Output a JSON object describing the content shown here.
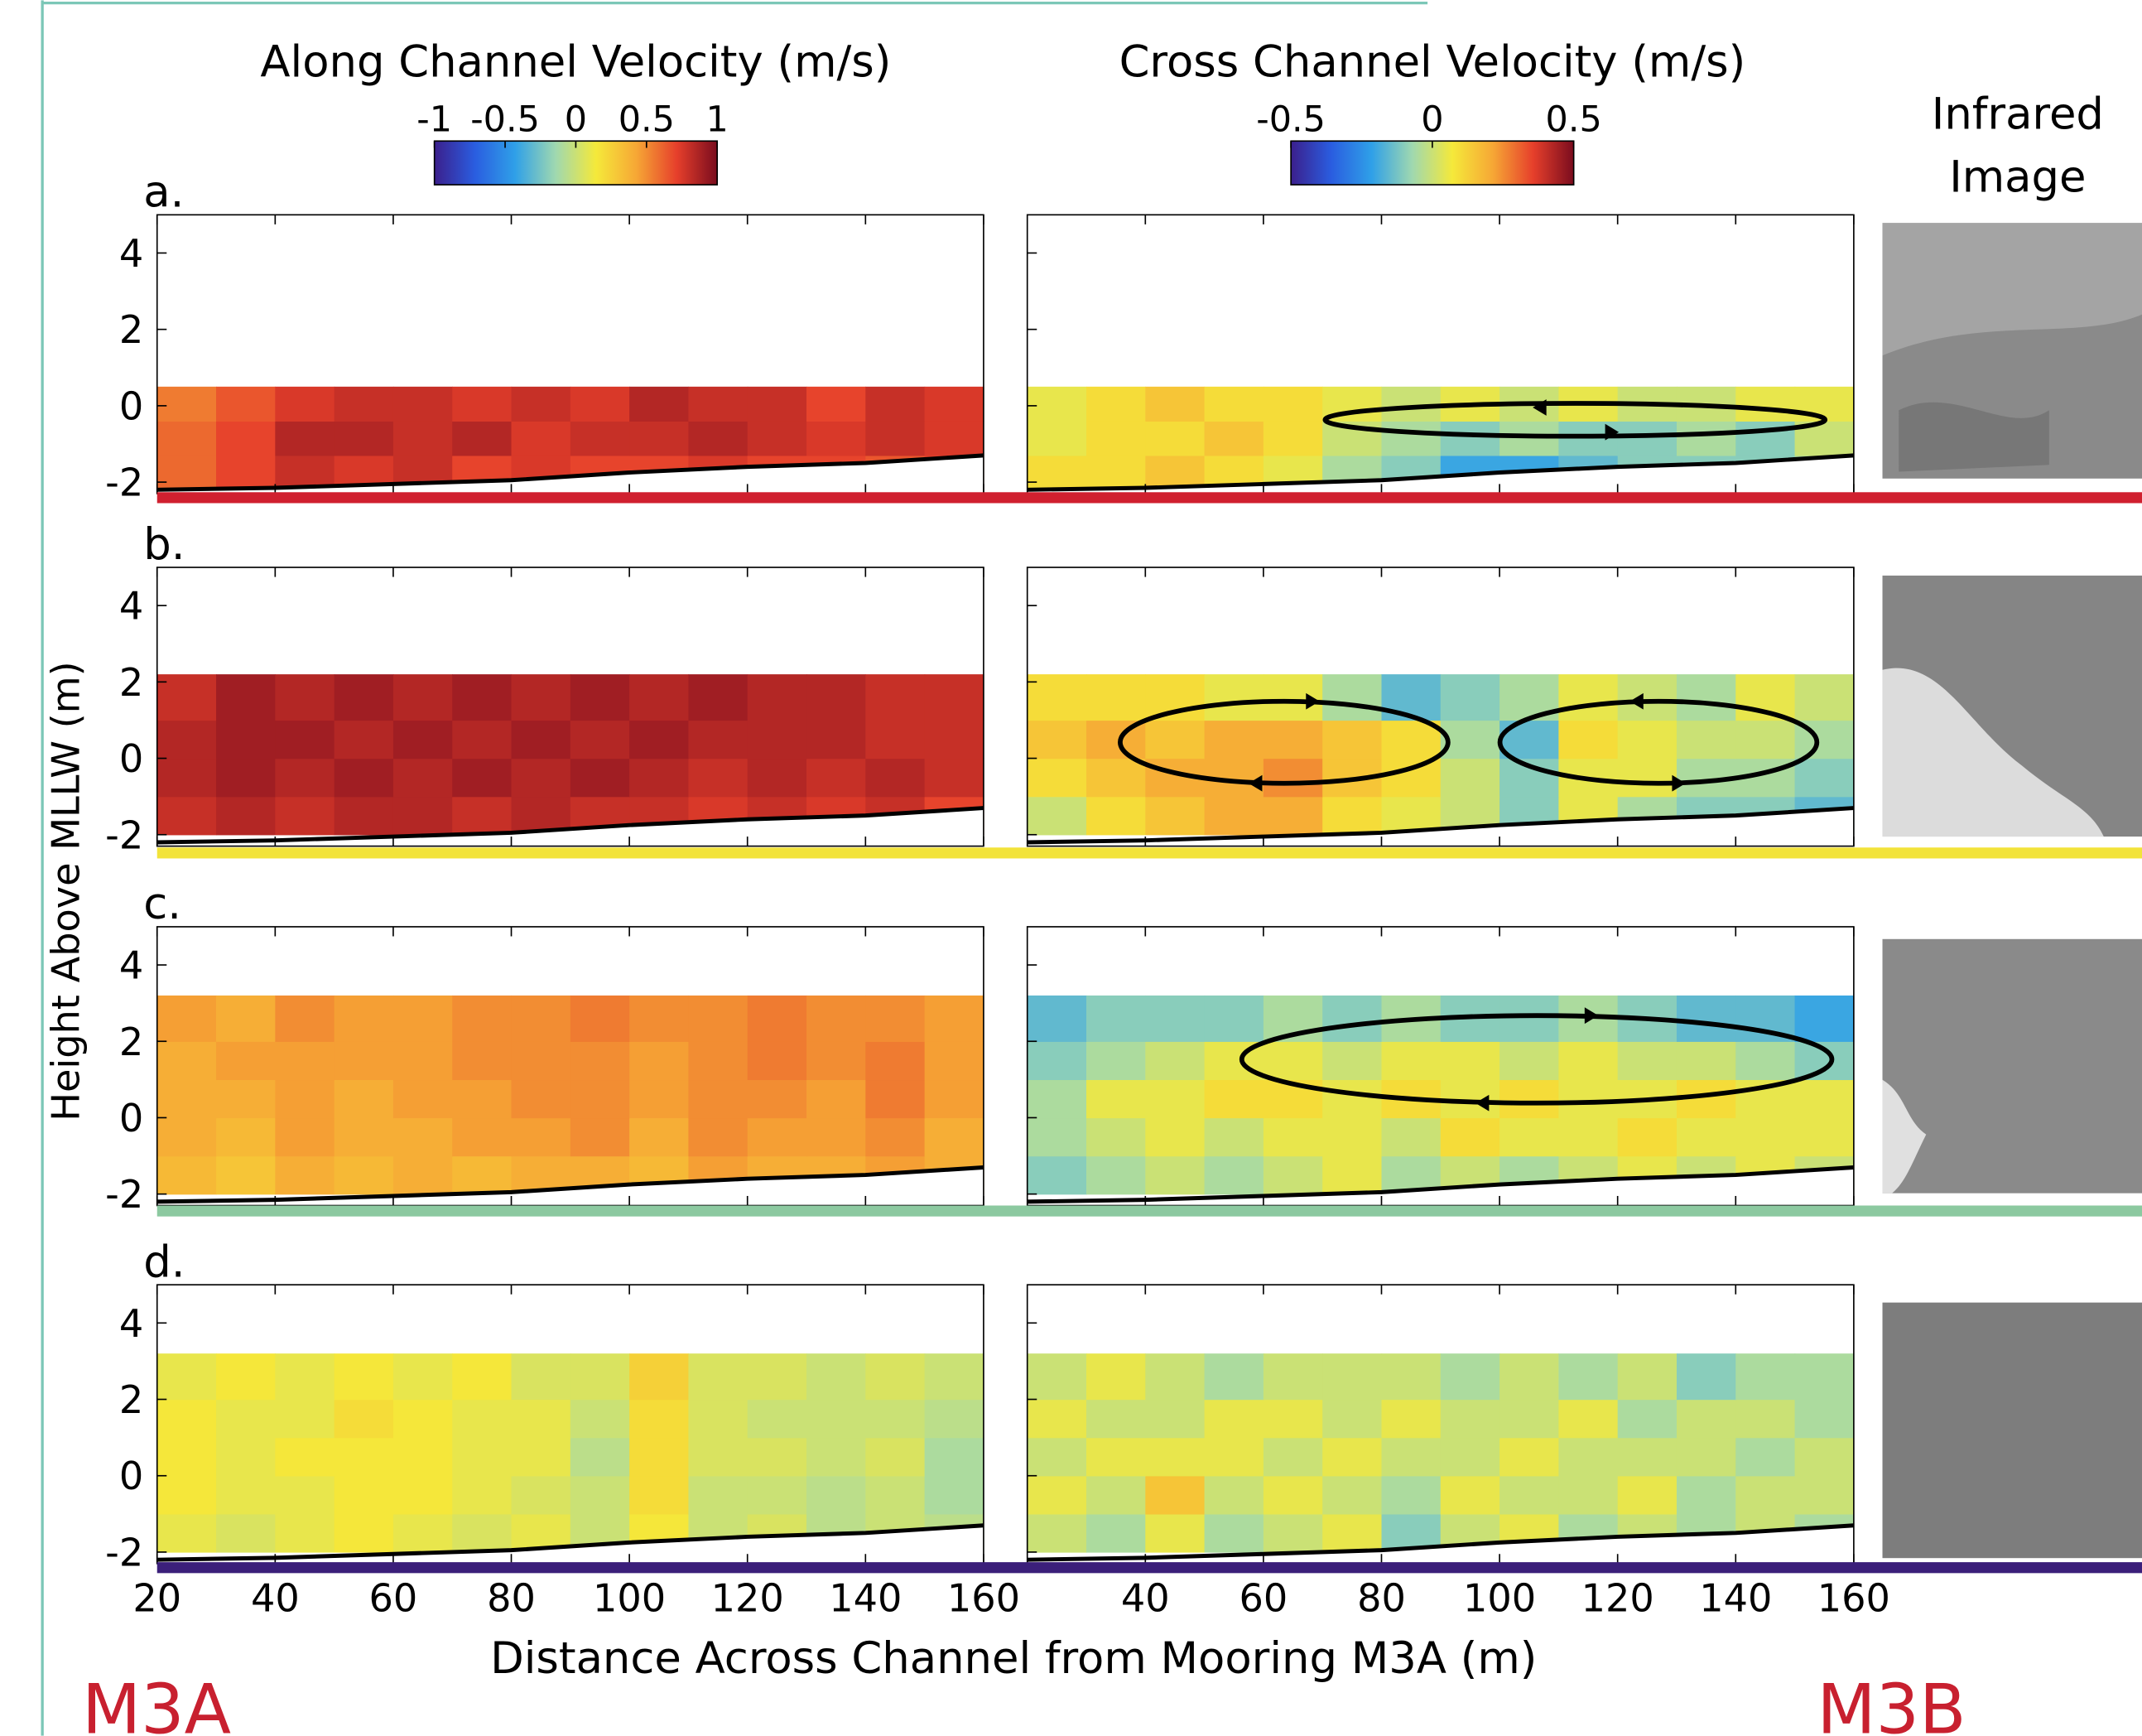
{
  "figure": {
    "ylabel": "Height Above MLLW (m)",
    "xlabel": "Distance Across Channel from Mooring M3A (m)",
    "image_title": [
      "Infrared",
      "Image"
    ],
    "panel_labels": [
      "a.",
      "b.",
      "c.",
      "d."
    ],
    "left_site": "M3A",
    "right_site": "M3B",
    "bottom": {
      "x": [
        20,
        40,
        60,
        80,
        100,
        120,
        140,
        160
      ],
      "y": [
        -2.2,
        -2.15,
        -2.05,
        -1.95,
        -1.75,
        -1.6,
        -1.5,
        -1.3
      ]
    }
  },
  "chart_data": [
    {
      "type": "heatmap",
      "title": "Along Channel Velocity (m/s)",
      "clim": [
        -1,
        1
      ],
      "cticks": [
        -1,
        -0.5,
        0,
        0.5,
        1
      ],
      "colormap": [
        "#3b1f8c",
        "#2a5de0",
        "#2fa0e8",
        "#9fd8b0",
        "#f5e93a",
        "#f6a735",
        "#e63f2b",
        "#7a0c1e"
      ],
      "xlim": [
        20,
        160
      ],
      "xticks": [
        20,
        40,
        60,
        80,
        100,
        120,
        140,
        160
      ],
      "ylim": [
        -2.3,
        5
      ],
      "yticks": [
        -2,
        0,
        2,
        4
      ],
      "x_edges": [
        20,
        30,
        40,
        50,
        60,
        70,
        80,
        90,
        100,
        110,
        120,
        130,
        140,
        150,
        160
      ],
      "panels": [
        {
          "y_edges": [
            -2.2,
            -1.3,
            -0.4,
            0.5
          ],
          "z": [
            [
              0.6,
              0.7,
              0.8,
              0.75,
              0.8,
              0.7,
              0.75,
              0.7,
              0.7,
              0.75,
              0.7,
              0.7,
              0.65,
              0.7
            ],
            [
              0.6,
              0.7,
              0.85,
              0.85,
              0.8,
              0.85,
              0.75,
              0.8,
              0.8,
              0.85,
              0.8,
              0.75,
              0.8,
              0.75
            ],
            [
              0.55,
              0.65,
              0.75,
              0.8,
              0.8,
              0.75,
              0.8,
              0.75,
              0.85,
              0.8,
              0.8,
              0.7,
              0.8,
              0.75
            ]
          ]
        },
        {
          "y_edges": [
            -2,
            -1,
            0,
            1,
            2.2
          ],
          "z": [
            [
              0.8,
              0.85,
              0.8,
              0.85,
              0.85,
              0.8,
              0.85,
              0.8,
              0.8,
              0.75,
              0.8,
              0.75,
              0.8,
              0.7
            ],
            [
              0.85,
              0.9,
              0.85,
              0.9,
              0.85,
              0.9,
              0.85,
              0.9,
              0.85,
              0.8,
              0.85,
              0.8,
              0.85,
              0.8
            ],
            [
              0.85,
              0.9,
              0.9,
              0.85,
              0.9,
              0.85,
              0.9,
              0.85,
              0.9,
              0.85,
              0.85,
              0.85,
              0.8,
              0.8
            ],
            [
              0.8,
              0.9,
              0.85,
              0.9,
              0.85,
              0.9,
              0.85,
              0.9,
              0.85,
              0.9,
              0.85,
              0.85,
              0.8,
              0.8
            ]
          ]
        },
        {
          "y_edges": [
            -2,
            -1,
            0,
            1,
            2,
            3.2
          ],
          "z": [
            [
              0.35,
              0.3,
              0.4,
              0.35,
              0.4,
              0.35,
              0.4,
              0.4,
              0.35,
              0.45,
              0.4,
              0.4,
              0.45,
              0.4
            ],
            [
              0.4,
              0.35,
              0.45,
              0.4,
              0.4,
              0.45,
              0.45,
              0.5,
              0.4,
              0.5,
              0.45,
              0.45,
              0.5,
              0.4
            ],
            [
              0.4,
              0.4,
              0.45,
              0.4,
              0.45,
              0.45,
              0.5,
              0.5,
              0.45,
              0.5,
              0.5,
              0.45,
              0.55,
              0.45
            ],
            [
              0.4,
              0.45,
              0.45,
              0.45,
              0.45,
              0.5,
              0.5,
              0.5,
              0.45,
              0.5,
              0.55,
              0.5,
              0.55,
              0.45
            ],
            [
              0.45,
              0.4,
              0.5,
              0.45,
              0.45,
              0.5,
              0.5,
              0.55,
              0.5,
              0.5,
              0.55,
              0.5,
              0.5,
              0.45
            ]
          ]
        },
        {
          "y_edges": [
            -2,
            -1,
            0,
            1,
            2,
            3.2
          ],
          "z": [
            [
              0.1,
              0.05,
              0.1,
              0.15,
              0.1,
              0.05,
              0.1,
              0.0,
              0.15,
              0.0,
              0.05,
              -0.05,
              0.0,
              -0.05
            ],
            [
              0.15,
              0.1,
              0.1,
              0.15,
              0.15,
              0.1,
              0.05,
              0.0,
              0.2,
              0.0,
              0.0,
              -0.05,
              0.0,
              -0.1
            ],
            [
              0.15,
              0.1,
              0.15,
              0.15,
              0.15,
              0.1,
              0.1,
              -0.05,
              0.2,
              0.05,
              0.05,
              0.0,
              0.05,
              -0.1
            ],
            [
              0.15,
              0.1,
              0.1,
              0.2,
              0.15,
              0.1,
              0.1,
              0.0,
              0.2,
              0.05,
              0.0,
              0.0,
              0.0,
              -0.05
            ],
            [
              0.1,
              0.15,
              0.1,
              0.15,
              0.1,
              0.15,
              0.05,
              0.05,
              0.25,
              0.05,
              0.05,
              0.0,
              0.05,
              0.0
            ]
          ]
        }
      ]
    },
    {
      "type": "heatmap",
      "title": "Cross Channel Velocity (m/s)",
      "clim": [
        -0.5,
        0.5
      ],
      "cticks": [
        -0.5,
        0,
        0.5
      ],
      "colormap": [
        "#3b1f8c",
        "#2a5de0",
        "#2fa0e8",
        "#9fd8b0",
        "#f5e93a",
        "#f6a735",
        "#e63f2b",
        "#7a0c1e"
      ],
      "xlim": [
        20,
        160
      ],
      "xticks": [
        40,
        60,
        80,
        100,
        120,
        140,
        160
      ],
      "ylim": [
        -2.3,
        5
      ],
      "yticks": [
        -2,
        0,
        2,
        4
      ],
      "x_edges": [
        20,
        30,
        40,
        50,
        60,
        70,
        80,
        90,
        100,
        110,
        120,
        130,
        140,
        150,
        160
      ],
      "panels": [
        {
          "y_edges": [
            -2.2,
            -1.3,
            -0.4,
            0.5
          ],
          "z": [
            [
              0.1,
              0.1,
              0.15,
              0.1,
              0.05,
              -0.05,
              -0.1,
              -0.2,
              -0.2,
              -0.15,
              -0.1,
              -0.1,
              -0.1,
              -0.05
            ],
            [
              0.05,
              0.1,
              0.1,
              0.15,
              0.1,
              0.0,
              -0.05,
              -0.1,
              -0.05,
              -0.1,
              -0.1,
              -0.05,
              -0.1,
              0.0
            ],
            [
              0.05,
              0.1,
              0.15,
              0.1,
              0.1,
              0.05,
              0.0,
              0.05,
              0.0,
              0.05,
              0.0,
              0.0,
              0.05,
              0.05
            ]
          ]
        },
        {
          "y_edges": [
            -2,
            -1,
            0,
            1,
            2.2
          ],
          "z": [
            [
              0.0,
              0.1,
              0.15,
              0.2,
              0.2,
              0.1,
              0.05,
              0.0,
              -0.1,
              0.05,
              -0.05,
              -0.1,
              -0.1,
              -0.15
            ],
            [
              0.1,
              0.15,
              0.2,
              0.2,
              0.25,
              0.15,
              0.1,
              0.0,
              -0.1,
              0.05,
              0.05,
              -0.05,
              -0.05,
              -0.1
            ],
            [
              0.15,
              0.2,
              0.15,
              0.2,
              0.2,
              0.15,
              0.1,
              -0.05,
              -0.15,
              0.1,
              0.05,
              0.0,
              0.0,
              -0.05
            ],
            [
              0.1,
              0.1,
              0.1,
              0.05,
              0.05,
              -0.05,
              -0.15,
              -0.1,
              -0.05,
              0.05,
              0.0,
              -0.05,
              0.05,
              0.0
            ]
          ]
        },
        {
          "y_edges": [
            -2,
            -1,
            0,
            1,
            2,
            3.2
          ],
          "z": [
            [
              -0.1,
              -0.05,
              0.0,
              -0.05,
              0.0,
              0.05,
              -0.05,
              0.0,
              -0.05,
              0.0,
              0.05,
              0.0,
              0.05,
              0.0
            ],
            [
              -0.05,
              0.0,
              0.05,
              0.0,
              0.05,
              0.05,
              0.0,
              0.1,
              0.05,
              0.05,
              0.1,
              0.05,
              0.05,
              0.05
            ],
            [
              -0.05,
              0.05,
              0.05,
              0.1,
              0.1,
              0.05,
              0.1,
              0.05,
              0.1,
              0.05,
              0.05,
              0.1,
              0.05,
              0.05
            ],
            [
              -0.1,
              -0.05,
              0.0,
              0.05,
              0.05,
              0.0,
              0.05,
              0.05,
              0.0,
              0.05,
              0.0,
              0.0,
              -0.05,
              -0.1
            ],
            [
              -0.15,
              -0.1,
              -0.1,
              -0.1,
              -0.05,
              -0.1,
              -0.05,
              -0.1,
              -0.1,
              -0.05,
              -0.1,
              -0.15,
              -0.15,
              -0.2
            ]
          ]
        },
        {
          "y_edges": [
            -2,
            -1,
            0,
            1,
            2,
            3.2
          ],
          "z": [
            [
              0.0,
              -0.05,
              0.05,
              -0.05,
              0.0,
              0.05,
              -0.1,
              0.0,
              0.05,
              -0.05,
              0.0,
              -0.05,
              0.0,
              -0.05
            ],
            [
              0.05,
              0.0,
              0.15,
              0.0,
              0.05,
              0.0,
              -0.05,
              0.05,
              0.0,
              0.0,
              0.05,
              -0.05,
              0.0,
              0.0
            ],
            [
              0.0,
              0.05,
              0.05,
              0.05,
              0.0,
              0.05,
              0.0,
              0.0,
              0.05,
              0.0,
              0.0,
              0.0,
              -0.05,
              0.0
            ],
            [
              0.05,
              0.0,
              0.0,
              0.05,
              0.05,
              0.0,
              0.05,
              0.0,
              0.0,
              0.05,
              -0.05,
              0.0,
              0.0,
              -0.05
            ],
            [
              0.0,
              0.05,
              0.0,
              -0.05,
              0.0,
              0.0,
              0.0,
              -0.05,
              0.0,
              -0.05,
              0.0,
              -0.1,
              -0.05,
              -0.05
            ]
          ]
        }
      ]
    }
  ]
}
